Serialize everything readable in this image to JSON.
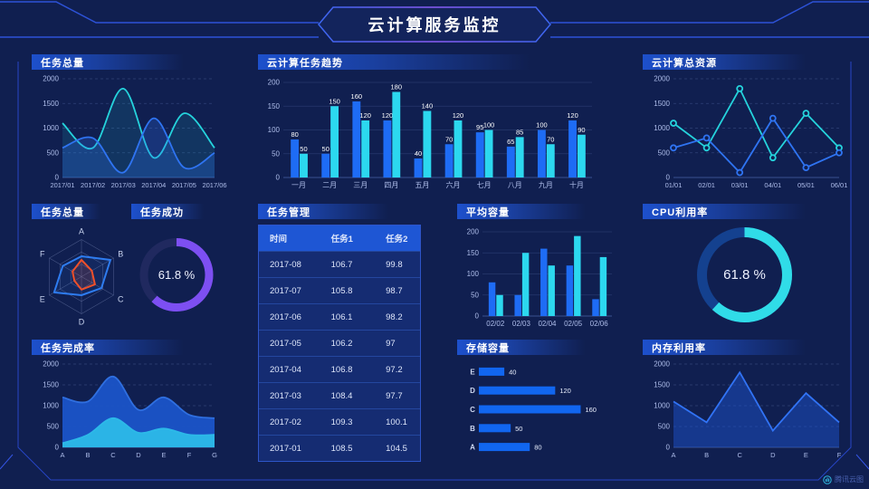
{
  "page": {
    "title": "云计算服务监控",
    "watermark": "腾讯云图"
  },
  "colors": {
    "background": "#101f50",
    "frame_line": "#2746c6",
    "accent_blue": "#1e6cf5",
    "accent_cyan": "#2cd8ef",
    "accent_purple": "#7d4ff2",
    "accent_orange": "#f0502a"
  },
  "panels": {
    "tasks_total": {
      "title": "任务总量"
    },
    "task_trend": {
      "title": "云计算任务趋势"
    },
    "total_resources": {
      "title": "云计算总资源"
    },
    "task_radar": {
      "title": "任务总量"
    },
    "task_success": {
      "title": "任务成功",
      "value": "61.8 %"
    },
    "task_manage": {
      "title": "任务管理"
    },
    "avg_capacity": {
      "title": "平均容量"
    },
    "cpu": {
      "title": "CPU利用率",
      "value": "61.8 %"
    },
    "completion": {
      "title": "任务完成率"
    },
    "storage": {
      "title": "存储容量"
    },
    "memory": {
      "title": "内存利用率"
    }
  },
  "table": {
    "headers": [
      "时间",
      "任务1",
      "任务2"
    ],
    "rows": [
      [
        "2017-08",
        "106.7",
        "99.8"
      ],
      [
        "2017-07",
        "105.8",
        "98.7"
      ],
      [
        "2017-06",
        "106.1",
        "98.2"
      ],
      [
        "2017-05",
        "106.2",
        "97"
      ],
      [
        "2017-04",
        "106.8",
        "97.2"
      ],
      [
        "2017-03",
        "108.4",
        "97.7"
      ],
      [
        "2017-02",
        "109.3",
        "100.1"
      ],
      [
        "2017-01",
        "108.5",
        "104.5"
      ]
    ]
  },
  "chart_data": [
    {
      "id": "tasks_total",
      "type": "line",
      "title": "任务总量",
      "x": [
        "2017/01",
        "2017/02",
        "2017/03",
        "2017/04",
        "2017/05",
        "2017/06"
      ],
      "yticks": [
        0,
        500,
        1000,
        1500,
        2000
      ],
      "ylim": [
        0,
        2000
      ],
      "grid": "dash",
      "smooth": true,
      "markers": false,
      "series": [
        {
          "name": "series-cyan",
          "color": "#25d3dc",
          "fill": "rgba(37,211,220,0.12)",
          "values": [
            1100,
            600,
            1800,
            400,
            1300,
            600
          ]
        },
        {
          "name": "series-blue",
          "color": "#2f74f2",
          "fill": "rgba(47,116,242,0.25)",
          "values": [
            600,
            800,
            100,
            1200,
            200,
            500
          ]
        }
      ]
    },
    {
      "id": "task_trend",
      "type": "bar",
      "title": "云计算任务趋势",
      "categories": [
        "一月",
        "二月",
        "三月",
        "四月",
        "五月",
        "六月",
        "七月",
        "八月",
        "九月",
        "十月"
      ],
      "yticks": [
        0,
        50,
        100,
        150,
        200
      ],
      "ylim": [
        0,
        200
      ],
      "value_labels": true,
      "series": [
        {
          "name": "任务1",
          "color": "#1e6cf5",
          "values": [
            80,
            50,
            160,
            120,
            40,
            70,
            95,
            65,
            100,
            120
          ]
        },
        {
          "name": "任务2",
          "color": "#2cd8ef",
          "values": [
            50,
            150,
            120,
            180,
            140,
            120,
            100,
            85,
            70,
            90
          ]
        }
      ]
    },
    {
      "id": "total_resources",
      "type": "line",
      "title": "云计算总资源",
      "x": [
        "01/01",
        "02/01",
        "03/01",
        "04/01",
        "05/01",
        "06/01"
      ],
      "yticks": [
        0,
        500,
        1000,
        1500,
        2000
      ],
      "ylim": [
        0,
        2000
      ],
      "grid": "dash",
      "smooth": false,
      "markers": true,
      "series": [
        {
          "name": "series-cyan",
          "color": "#25d3dc",
          "fill": null,
          "values": [
            1100,
            600,
            1800,
            400,
            1300,
            600
          ]
        },
        {
          "name": "series-blue",
          "color": "#2f74f2",
          "fill": null,
          "values": [
            600,
            800,
            100,
            1200,
            200,
            500
          ]
        }
      ]
    },
    {
      "id": "task_radar",
      "type": "radar",
      "title": "任务总量",
      "axes": [
        "A",
        "B",
        "C",
        "D",
        "E",
        "F"
      ],
      "max": 100,
      "series": [
        {
          "name": "blue",
          "color": "#2e7cf0",
          "fill": "rgba(46,124,240,0.10)",
          "values": [
            55,
            90,
            62,
            50,
            85,
            58
          ]
        },
        {
          "name": "orange",
          "color": "#f0502a",
          "fill": "rgba(240,80,42,0.15)",
          "values": [
            45,
            32,
            42,
            35,
            22,
            28
          ]
        }
      ]
    },
    {
      "id": "task_success",
      "type": "donut",
      "title": "任务成功",
      "percent": 61.8,
      "label": "61.8 %",
      "color": "#7d4ff2",
      "track": "#20295f",
      "r": 36,
      "stroke": 9
    },
    {
      "id": "avg_capacity",
      "type": "bar",
      "title": "平均容量",
      "categories": [
        "02/02",
        "02/03",
        "02/04",
        "02/05",
        "02/06"
      ],
      "yticks": [
        0,
        50,
        100,
        150,
        200
      ],
      "ylim": [
        0,
        200
      ],
      "value_labels": false,
      "series": [
        {
          "name": "series-blue",
          "color": "#1e6cf5",
          "values": [
            80,
            50,
            160,
            120,
            40
          ]
        },
        {
          "name": "series-cyan",
          "color": "#2cd8ef",
          "values": [
            50,
            150,
            120,
            190,
            140
          ]
        }
      ]
    },
    {
      "id": "storage",
      "type": "hbar",
      "title": "存储容量",
      "categories": [
        "E",
        "D",
        "C",
        "B",
        "A"
      ],
      "values": [
        40,
        120,
        160,
        50,
        80
      ],
      "max": 175,
      "color": "#1166f0"
    },
    {
      "id": "cpu",
      "type": "donut",
      "title": "CPU利用率",
      "percent": 61.8,
      "label": "61.8 %",
      "color": "#30dce8",
      "track": "#14418f",
      "r": 47,
      "stroke": 11
    },
    {
      "id": "completion",
      "type": "line",
      "title": "任务完成率",
      "x": [
        "A",
        "B",
        "C",
        "D",
        "E",
        "F",
        "G"
      ],
      "yticks": [
        0,
        500,
        1000,
        1500,
        2000
      ],
      "ylim": [
        0,
        2000
      ],
      "grid": "dash",
      "smooth": true,
      "markers": false,
      "series": [
        {
          "name": "blue-area",
          "color": "#2f6fe0",
          "fill": "rgba(27,84,200,0.95)",
          "values": [
            1200,
            1100,
            1700,
            900,
            1200,
            780,
            700
          ]
        },
        {
          "name": "cyan-area",
          "color": "#2cb9e8",
          "fill": "rgba(44,185,232,0.95)",
          "values": [
            100,
            300,
            700,
            350,
            450,
            300,
            300
          ]
        }
      ]
    },
    {
      "id": "memory",
      "type": "line",
      "title": "内存利用率",
      "x": [
        "A",
        "B",
        "C",
        "D",
        "E",
        "F"
      ],
      "yticks": [
        0,
        500,
        1000,
        1500,
        2000
      ],
      "ylim": [
        0,
        2000
      ],
      "grid": "dash",
      "smooth": false,
      "markers": false,
      "series": [
        {
          "name": "blue",
          "color": "#3173f5",
          "fill": "rgba(31,86,214,0.45)",
          "values": [
            1100,
            600,
            1800,
            400,
            1300,
            600
          ]
        }
      ]
    }
  ]
}
